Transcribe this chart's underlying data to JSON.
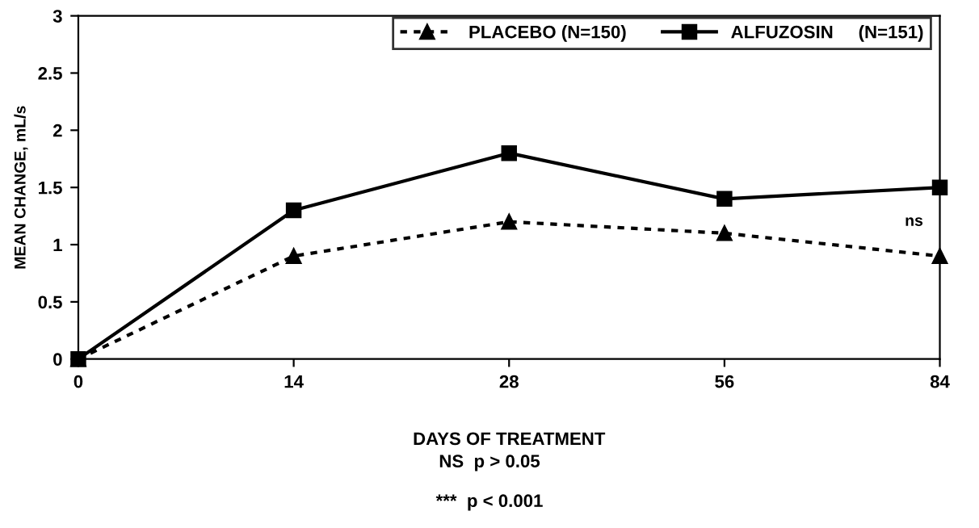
{
  "chart_data": {
    "type": "line",
    "xlabel": "DAYS OF TREATMENT",
    "ylabel": "MEAN CHANGE, mL/s",
    "categories": [
      "0",
      "14",
      "28",
      "56",
      "84"
    ],
    "series": [
      {
        "name": "PLACEBO (N=150)",
        "color": "#000000",
        "values": [
          0,
          0.9,
          1.2,
          1.1,
          0.9
        ],
        "marker": "triangle",
        "line_style": "dotted"
      },
      {
        "name": "ALFUZOSIN     (N=151)",
        "color": "#000000",
        "values": [
          0,
          1.3,
          1.8,
          1.4,
          1.5
        ],
        "marker": "square",
        "line_style": "solid"
      }
    ],
    "ylim": [
      0,
      3
    ],
    "yticks": [
      0,
      0.5,
      1,
      1.5,
      2,
      2.5,
      3
    ],
    "grid": false,
    "legend": "top right",
    "annotations": [
      "ns",
      "NS  p > 0.05",
      "***  p < 0.001"
    ]
  }
}
